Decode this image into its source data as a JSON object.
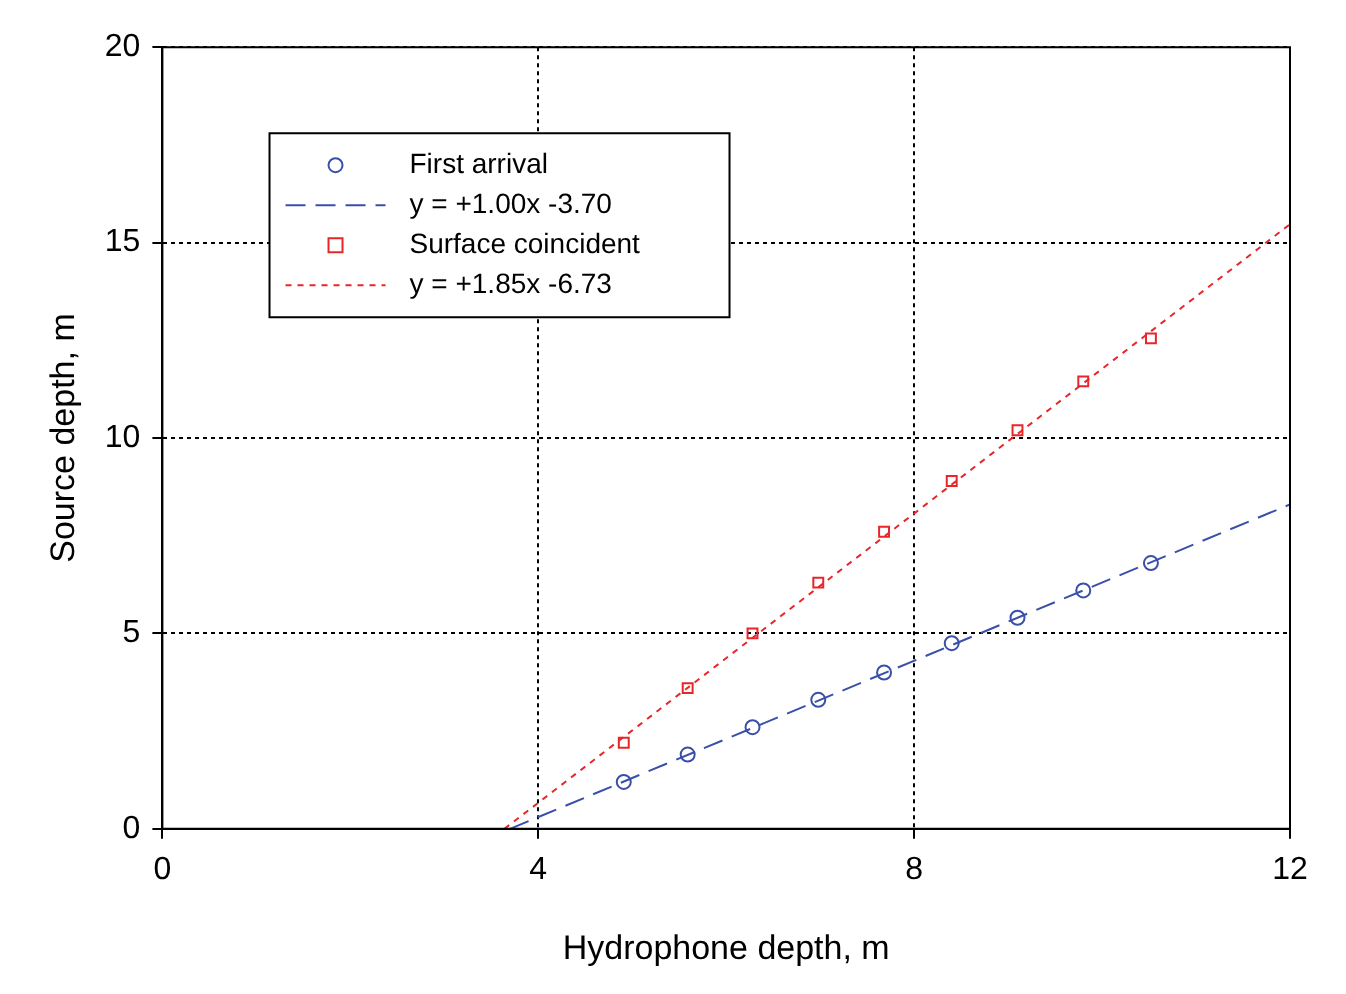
{
  "chart_data": {
    "type": "scatter",
    "xlabel": "Hydrophone depth, m",
    "ylabel": "Source depth, m",
    "xlim": [
      0,
      12
    ],
    "xticks": [
      0,
      4,
      8,
      12
    ],
    "ylim": [
      0,
      20
    ],
    "yticks": [
      0,
      5,
      10,
      15,
      20
    ],
    "grid": true,
    "legend": "top left",
    "series": [
      {
        "name": "First arrival",
        "marker": "circle",
        "color": "#3a4fa8",
        "x": [
          4.91,
          5.59,
          6.28,
          6.98,
          7.68,
          8.4,
          9.1,
          9.8,
          10.52
        ],
        "values": [
          1.2,
          1.9,
          2.6,
          3.3,
          4.0,
          4.75,
          5.4,
          6.1,
          6.8
        ]
      },
      {
        "name": "y = +1.00x -3.70",
        "type": "line",
        "line_style": "dashed",
        "color": "#3a4fa8",
        "x": [
          3.7,
          12
        ],
        "values": [
          0,
          8.3
        ]
      },
      {
        "name": "Surface coincident",
        "marker": "square",
        "color": "#e8262a",
        "x": [
          4.91,
          5.59,
          6.28,
          6.98,
          7.68,
          8.4,
          9.1,
          9.8,
          10.52
        ],
        "values": [
          2.2,
          3.6,
          5.0,
          6.3,
          7.6,
          8.9,
          10.2,
          11.45,
          12.55
        ]
      },
      {
        "name": "y = +1.85x -6.73",
        "type": "line",
        "line_style": "dotted",
        "color": "#e8262a",
        "x": [
          3.64,
          12
        ],
        "values": [
          0,
          15.47
        ]
      }
    ]
  }
}
